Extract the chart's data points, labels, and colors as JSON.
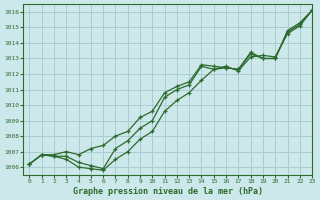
{
  "title": "Graphe pression niveau de la mer (hPa)",
  "bg_color": "#cce8eb",
  "grid_color": "#aacdd2",
  "line_color": "#2d6a2d",
  "xlim": [
    -0.5,
    23
  ],
  "ylim": [
    1005.5,
    1016.5
  ],
  "xticks": [
    0,
    1,
    2,
    3,
    4,
    5,
    6,
    7,
    8,
    9,
    10,
    11,
    12,
    13,
    14,
    15,
    16,
    17,
    18,
    19,
    20,
    21,
    22,
    23
  ],
  "yticks": [
    1006,
    1007,
    1008,
    1009,
    1010,
    1011,
    1012,
    1013,
    1014,
    1015,
    1016
  ],
  "series": [
    [
      1006.2,
      1006.8,
      1006.7,
      1006.7,
      1006.3,
      1006.1,
      1005.9,
      1007.2,
      1007.7,
      1008.5,
      1009.0,
      1010.5,
      1011.0,
      1011.3,
      1012.5,
      1012.3,
      1012.4,
      1012.3,
      1013.4,
      1013.0,
      1013.0,
      1014.8,
      1015.3,
      1016.1
    ],
    [
      1006.2,
      1006.8,
      1006.7,
      1006.5,
      1006.0,
      1005.9,
      1005.8,
      1006.5,
      1007.0,
      1007.8,
      1008.3,
      1009.6,
      1010.3,
      1010.8,
      1011.6,
      1012.3,
      1012.5,
      1012.2,
      1013.1,
      1013.2,
      1013.1,
      1014.6,
      1015.1,
      1016.1
    ],
    [
      1006.2,
      1006.8,
      1006.8,
      1007.0,
      1006.8,
      1007.2,
      1007.4,
      1008.0,
      1008.3,
      1009.2,
      1009.6,
      1010.8,
      1011.2,
      1011.5,
      1012.6,
      1012.5,
      1012.4,
      1012.3,
      1013.3,
      1013.0,
      1013.0,
      1014.7,
      1015.2,
      1016.1
    ]
  ]
}
